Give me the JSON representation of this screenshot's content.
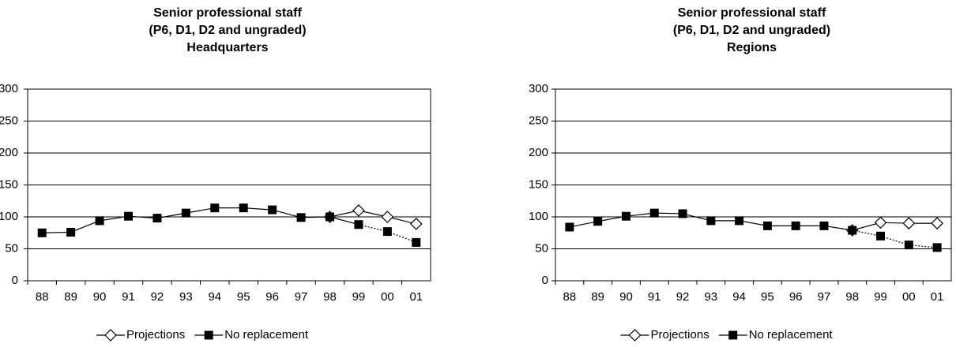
{
  "chart_data": [
    {
      "type": "line",
      "title": [
        "Senior professional staff",
        "(P6, D1, D2 and ungraded)",
        "Headquarters"
      ],
      "categories": [
        "88",
        "89",
        "90",
        "91",
        "92",
        "93",
        "94",
        "95",
        "96",
        "97",
        "98",
        "99",
        "00",
        "01"
      ],
      "ylim": [
        0,
        300
      ],
      "yticks": [
        0,
        50,
        100,
        150,
        200,
        250,
        300
      ],
      "grid": true,
      "series": [
        {
          "name": "Projections",
          "marker": "diamond",
          "color": "#000000",
          "values": [
            null,
            null,
            null,
            null,
            null,
            null,
            null,
            null,
            null,
            null,
            100,
            110,
            100,
            89
          ]
        },
        {
          "name": "No replacement",
          "marker": "square",
          "color": "#000000",
          "dashed_after": "99",
          "values": [
            75,
            76,
            94,
            101,
            98,
            106,
            114,
            114,
            111,
            99,
            100,
            88,
            77,
            60
          ]
        }
      ]
    },
    {
      "type": "line",
      "title": [
        "Senior professional staff",
        "(P6, D1, D2 and ungraded)",
        "Regions"
      ],
      "categories": [
        "88",
        "89",
        "90",
        "91",
        "92",
        "93",
        "94",
        "95",
        "96",
        "97",
        "98",
        "99",
        "00",
        "01"
      ],
      "ylim": [
        0,
        300
      ],
      "yticks": [
        0,
        50,
        100,
        150,
        200,
        250,
        300
      ],
      "grid": true,
      "series": [
        {
          "name": "Projections",
          "marker": "diamond",
          "color": "#000000",
          "values": [
            null,
            null,
            null,
            null,
            null,
            null,
            null,
            null,
            null,
            null,
            79,
            91,
            90,
            90
          ]
        },
        {
          "name": "No replacement",
          "marker": "square",
          "color": "#000000",
          "dashed_after": "98",
          "values": [
            84,
            93,
            101,
            106,
            105,
            94,
            94,
            86,
            86,
            86,
            79,
            70,
            56,
            52
          ]
        }
      ]
    }
  ]
}
